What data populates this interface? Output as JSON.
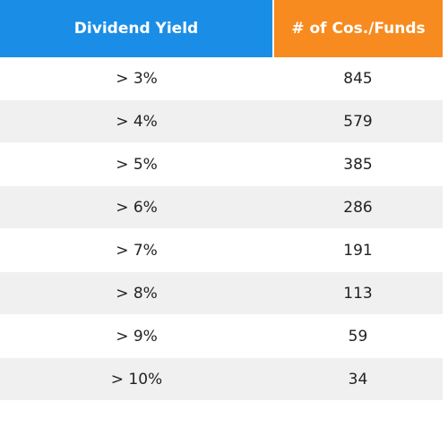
{
  "table": {
    "headers": {
      "yield": "Dividend Yield",
      "count": "# of Cos./Funds"
    },
    "header_colors": {
      "yield": "#1a8ee6",
      "count": "#f78b1f"
    },
    "rows": [
      {
        "yield": "> 3%",
        "count": "845"
      },
      {
        "yield": "> 4%",
        "count": "579"
      },
      {
        "yield": "> 5%",
        "count": "385"
      },
      {
        "yield": "> 6%",
        "count": "286"
      },
      {
        "yield": "> 7%",
        "count": "191"
      },
      {
        "yield": "> 8%",
        "count": "113"
      },
      {
        "yield": "> 9%",
        "count": "59"
      },
      {
        "yield": "> 10%",
        "count": "34"
      }
    ]
  }
}
